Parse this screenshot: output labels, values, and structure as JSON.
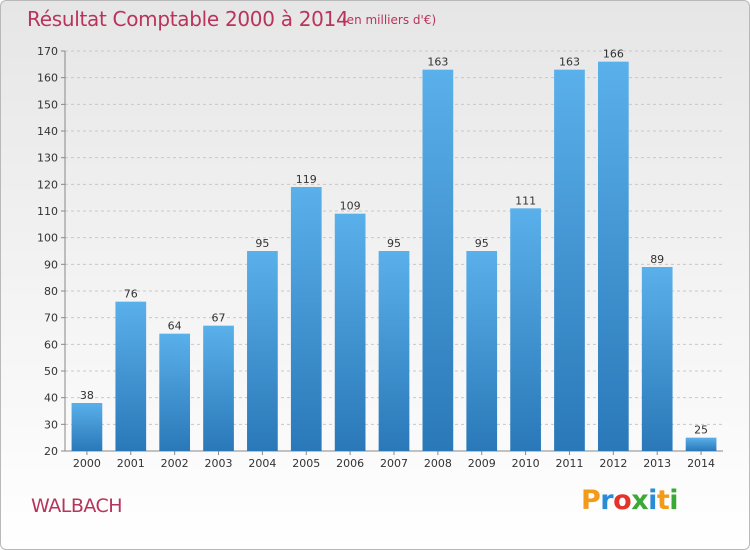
{
  "header": {
    "title": "Résultat Comptable 2000 à 2014",
    "subtitle": "(en milliers d'€)"
  },
  "footer": {
    "commune": "WALBACH",
    "logo_letters": [
      {
        "ch": "P",
        "color": "#f29a1a"
      },
      {
        "ch": "r",
        "color": "#2c8bd6"
      },
      {
        "ch": "o",
        "color": "#e6332a"
      },
      {
        "ch": "x",
        "color": "#3aa935"
      },
      {
        "ch": "i",
        "color": "#2c8bd6"
      },
      {
        "ch": "t",
        "color": "#f29a1a"
      },
      {
        "ch": "i",
        "color": "#3aa935"
      }
    ]
  },
  "chart_data": {
    "type": "bar",
    "categories": [
      "2000",
      "2001",
      "2002",
      "2003",
      "2004",
      "2005",
      "2006",
      "2007",
      "2008",
      "2009",
      "2010",
      "2011",
      "2012",
      "2013",
      "2014"
    ],
    "values": [
      38,
      76,
      64,
      67,
      95,
      119,
      109,
      95,
      163,
      95,
      111,
      163,
      166,
      89,
      25
    ],
    "ylim": [
      20,
      170
    ],
    "yticks": [
      20,
      30,
      40,
      50,
      60,
      70,
      80,
      90,
      100,
      110,
      120,
      130,
      140,
      150,
      160,
      170
    ],
    "grid": "horizontal-dashed",
    "bar_color_top": "#5ab0ea",
    "bar_color_bottom": "#2a78b8"
  }
}
